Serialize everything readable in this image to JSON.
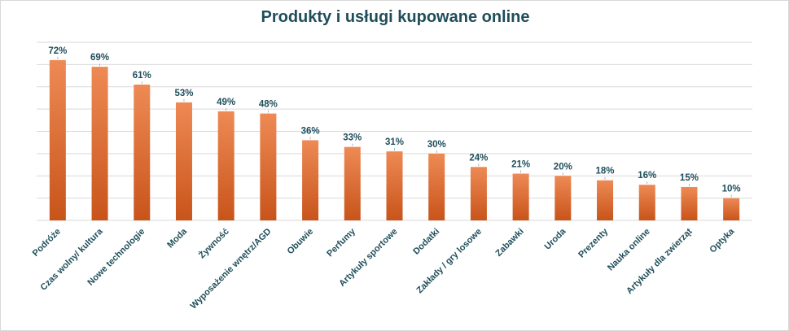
{
  "chart_data": {
    "type": "bar",
    "title": "Produkty i usługi kupowane online",
    "categories": [
      "Podróże",
      "Czas wolny/ kultura",
      "Nowe technologie",
      "Moda",
      "Żywność",
      "Wyposażenie wnętrz/AGD",
      "Obuwie",
      "Perfumy",
      "Artykuły sportowe",
      "Dodatki",
      "Zakłady / gry losowe",
      "Zabawki",
      "Uroda",
      "Prezenty",
      "Nauka online",
      "Artykuły dla zwierząt",
      "Optyka"
    ],
    "values": [
      72,
      69,
      61,
      53,
      49,
      48,
      36,
      33,
      31,
      30,
      24,
      21,
      20,
      18,
      16,
      15,
      10
    ],
    "value_labels": [
      "72%",
      "69%",
      "61%",
      "53%",
      "49%",
      "48%",
      "36%",
      "33%",
      "31%",
      "30%",
      "24%",
      "21%",
      "20%",
      "18%",
      "16%",
      "15%",
      "10%"
    ],
    "ylim": [
      0,
      80
    ],
    "grid": true,
    "legend": "none",
    "colors": {
      "bar_top": "#ee8a55",
      "bar_bottom": "#c8541a",
      "text": "#1f4e5a",
      "grid": "#d9d9d9"
    }
  }
}
